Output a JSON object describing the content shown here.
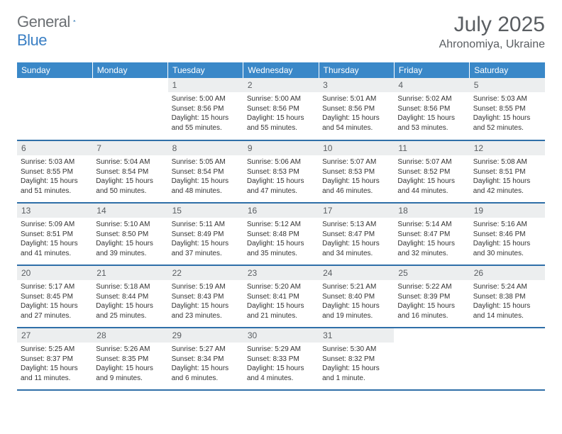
{
  "brand": {
    "part1": "General",
    "part2": "Blue"
  },
  "title": "July 2025",
  "location": "Ahronomiya, Ukraine",
  "colors": {
    "header_bg": "#3a88c8",
    "header_text": "#ffffff",
    "row_divider": "#2f6fa8",
    "daynum_bg": "#eceeef",
    "text_muted": "#5a5e62",
    "body_text": "#333333",
    "brand_gray": "#6b6f73",
    "brand_blue": "#3a7fc4",
    "background": "#ffffff"
  },
  "day_headers": [
    "Sunday",
    "Monday",
    "Tuesday",
    "Wednesday",
    "Thursday",
    "Friday",
    "Saturday"
  ],
  "weeks": [
    [
      null,
      null,
      {
        "n": "1",
        "sunrise": "Sunrise: 5:00 AM",
        "sunset": "Sunset: 8:56 PM",
        "day1": "Daylight: 15 hours",
        "day2": "and 55 minutes."
      },
      {
        "n": "2",
        "sunrise": "Sunrise: 5:00 AM",
        "sunset": "Sunset: 8:56 PM",
        "day1": "Daylight: 15 hours",
        "day2": "and 55 minutes."
      },
      {
        "n": "3",
        "sunrise": "Sunrise: 5:01 AM",
        "sunset": "Sunset: 8:56 PM",
        "day1": "Daylight: 15 hours",
        "day2": "and 54 minutes."
      },
      {
        "n": "4",
        "sunrise": "Sunrise: 5:02 AM",
        "sunset": "Sunset: 8:56 PM",
        "day1": "Daylight: 15 hours",
        "day2": "and 53 minutes."
      },
      {
        "n": "5",
        "sunrise": "Sunrise: 5:03 AM",
        "sunset": "Sunset: 8:55 PM",
        "day1": "Daylight: 15 hours",
        "day2": "and 52 minutes."
      }
    ],
    [
      {
        "n": "6",
        "sunrise": "Sunrise: 5:03 AM",
        "sunset": "Sunset: 8:55 PM",
        "day1": "Daylight: 15 hours",
        "day2": "and 51 minutes."
      },
      {
        "n": "7",
        "sunrise": "Sunrise: 5:04 AM",
        "sunset": "Sunset: 8:54 PM",
        "day1": "Daylight: 15 hours",
        "day2": "and 50 minutes."
      },
      {
        "n": "8",
        "sunrise": "Sunrise: 5:05 AM",
        "sunset": "Sunset: 8:54 PM",
        "day1": "Daylight: 15 hours",
        "day2": "and 48 minutes."
      },
      {
        "n": "9",
        "sunrise": "Sunrise: 5:06 AM",
        "sunset": "Sunset: 8:53 PM",
        "day1": "Daylight: 15 hours",
        "day2": "and 47 minutes."
      },
      {
        "n": "10",
        "sunrise": "Sunrise: 5:07 AM",
        "sunset": "Sunset: 8:53 PM",
        "day1": "Daylight: 15 hours",
        "day2": "and 46 minutes."
      },
      {
        "n": "11",
        "sunrise": "Sunrise: 5:07 AM",
        "sunset": "Sunset: 8:52 PM",
        "day1": "Daylight: 15 hours",
        "day2": "and 44 minutes."
      },
      {
        "n": "12",
        "sunrise": "Sunrise: 5:08 AM",
        "sunset": "Sunset: 8:51 PM",
        "day1": "Daylight: 15 hours",
        "day2": "and 42 minutes."
      }
    ],
    [
      {
        "n": "13",
        "sunrise": "Sunrise: 5:09 AM",
        "sunset": "Sunset: 8:51 PM",
        "day1": "Daylight: 15 hours",
        "day2": "and 41 minutes."
      },
      {
        "n": "14",
        "sunrise": "Sunrise: 5:10 AM",
        "sunset": "Sunset: 8:50 PM",
        "day1": "Daylight: 15 hours",
        "day2": "and 39 minutes."
      },
      {
        "n": "15",
        "sunrise": "Sunrise: 5:11 AM",
        "sunset": "Sunset: 8:49 PM",
        "day1": "Daylight: 15 hours",
        "day2": "and 37 minutes."
      },
      {
        "n": "16",
        "sunrise": "Sunrise: 5:12 AM",
        "sunset": "Sunset: 8:48 PM",
        "day1": "Daylight: 15 hours",
        "day2": "and 35 minutes."
      },
      {
        "n": "17",
        "sunrise": "Sunrise: 5:13 AM",
        "sunset": "Sunset: 8:47 PM",
        "day1": "Daylight: 15 hours",
        "day2": "and 34 minutes."
      },
      {
        "n": "18",
        "sunrise": "Sunrise: 5:14 AM",
        "sunset": "Sunset: 8:47 PM",
        "day1": "Daylight: 15 hours",
        "day2": "and 32 minutes."
      },
      {
        "n": "19",
        "sunrise": "Sunrise: 5:16 AM",
        "sunset": "Sunset: 8:46 PM",
        "day1": "Daylight: 15 hours",
        "day2": "and 30 minutes."
      }
    ],
    [
      {
        "n": "20",
        "sunrise": "Sunrise: 5:17 AM",
        "sunset": "Sunset: 8:45 PM",
        "day1": "Daylight: 15 hours",
        "day2": "and 27 minutes."
      },
      {
        "n": "21",
        "sunrise": "Sunrise: 5:18 AM",
        "sunset": "Sunset: 8:44 PM",
        "day1": "Daylight: 15 hours",
        "day2": "and 25 minutes."
      },
      {
        "n": "22",
        "sunrise": "Sunrise: 5:19 AM",
        "sunset": "Sunset: 8:43 PM",
        "day1": "Daylight: 15 hours",
        "day2": "and 23 minutes."
      },
      {
        "n": "23",
        "sunrise": "Sunrise: 5:20 AM",
        "sunset": "Sunset: 8:41 PM",
        "day1": "Daylight: 15 hours",
        "day2": "and 21 minutes."
      },
      {
        "n": "24",
        "sunrise": "Sunrise: 5:21 AM",
        "sunset": "Sunset: 8:40 PM",
        "day1": "Daylight: 15 hours",
        "day2": "and 19 minutes."
      },
      {
        "n": "25",
        "sunrise": "Sunrise: 5:22 AM",
        "sunset": "Sunset: 8:39 PM",
        "day1": "Daylight: 15 hours",
        "day2": "and 16 minutes."
      },
      {
        "n": "26",
        "sunrise": "Sunrise: 5:24 AM",
        "sunset": "Sunset: 8:38 PM",
        "day1": "Daylight: 15 hours",
        "day2": "and 14 minutes."
      }
    ],
    [
      {
        "n": "27",
        "sunrise": "Sunrise: 5:25 AM",
        "sunset": "Sunset: 8:37 PM",
        "day1": "Daylight: 15 hours",
        "day2": "and 11 minutes."
      },
      {
        "n": "28",
        "sunrise": "Sunrise: 5:26 AM",
        "sunset": "Sunset: 8:35 PM",
        "day1": "Daylight: 15 hours",
        "day2": "and 9 minutes."
      },
      {
        "n": "29",
        "sunrise": "Sunrise: 5:27 AM",
        "sunset": "Sunset: 8:34 PM",
        "day1": "Daylight: 15 hours",
        "day2": "and 6 minutes."
      },
      {
        "n": "30",
        "sunrise": "Sunrise: 5:29 AM",
        "sunset": "Sunset: 8:33 PM",
        "day1": "Daylight: 15 hours",
        "day2": "and 4 minutes."
      },
      {
        "n": "31",
        "sunrise": "Sunrise: 5:30 AM",
        "sunset": "Sunset: 8:32 PM",
        "day1": "Daylight: 15 hours",
        "day2": "and 1 minute."
      },
      null,
      null
    ]
  ]
}
